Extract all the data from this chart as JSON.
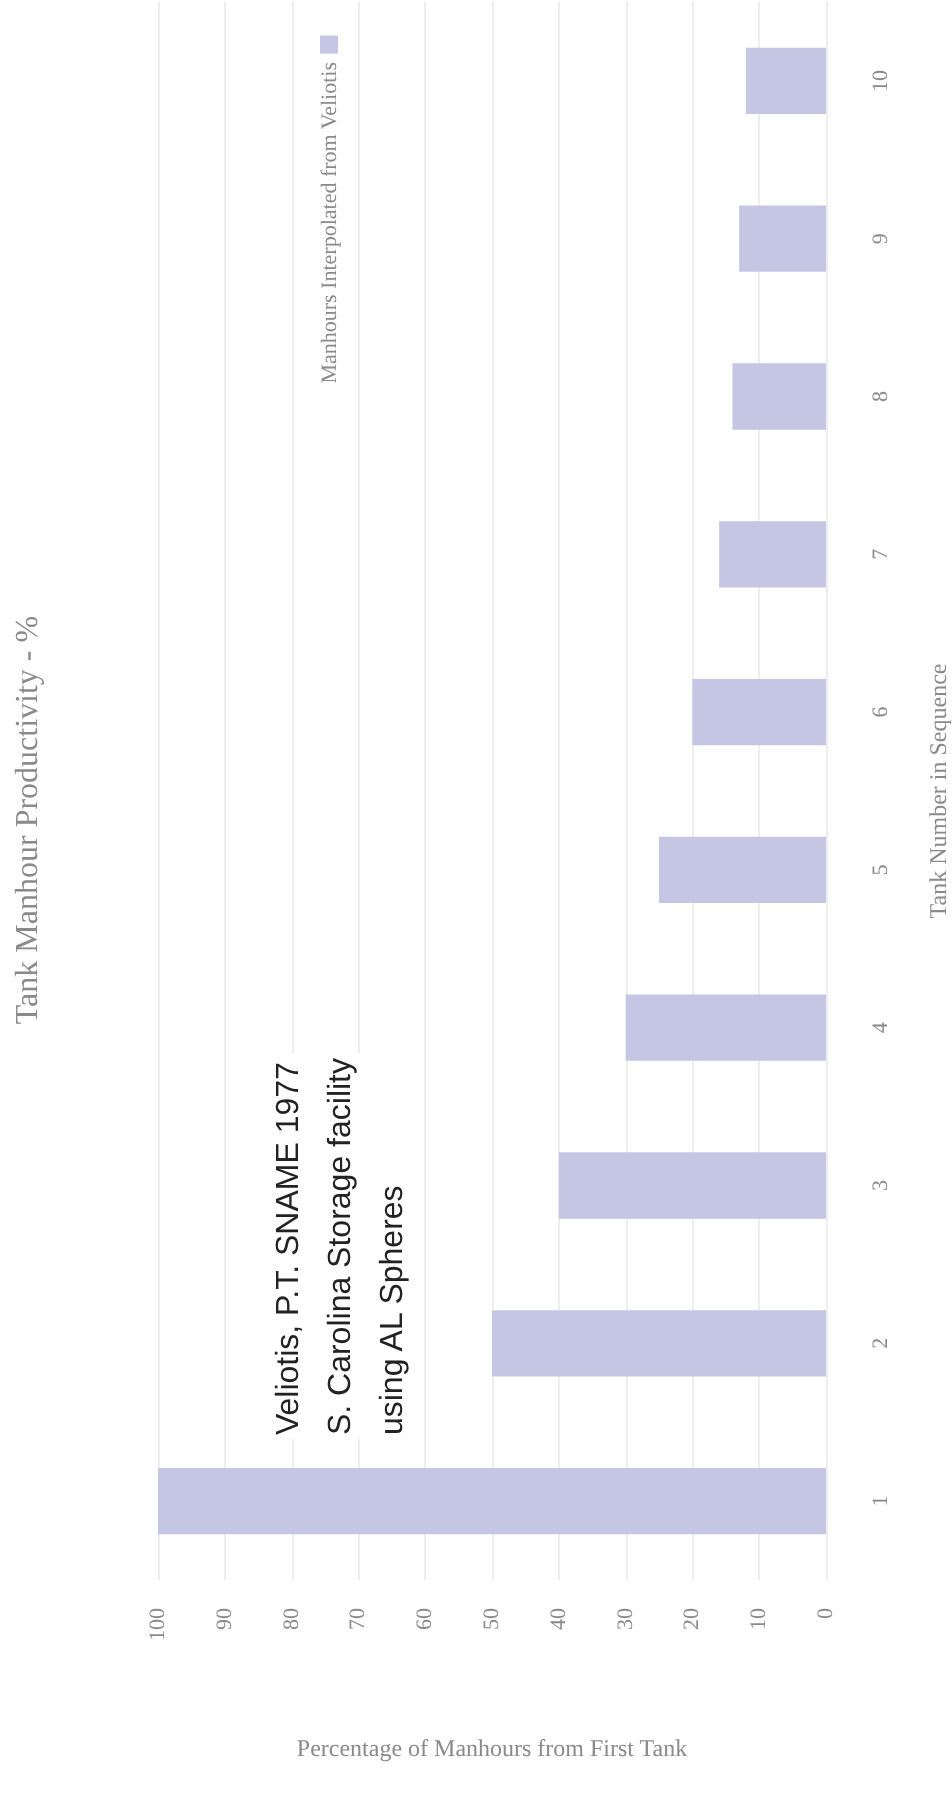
{
  "chart_data": {
    "type": "bar",
    "orientation": "horizontal",
    "title": "Tank Manhour Productivity - %",
    "xlabel": "Percentage of Manhours from First Tank",
    "ylabel": "Tank Number in Sequence",
    "categories": [
      "10",
      "9",
      "8",
      "7",
      "6",
      "5",
      "4",
      "3",
      "2",
      "1"
    ],
    "series": [
      {
        "name": "Manhours Interpolated from Veliotis",
        "color": "#c5c6e3",
        "values": [
          12,
          13,
          14,
          16,
          20,
          25,
          30,
          40,
          50,
          100
        ]
      }
    ],
    "xlim": [
      100,
      0
    ],
    "xticks": [
      0,
      10,
      20,
      30,
      40,
      50,
      60,
      70,
      80,
      90,
      100
    ],
    "grid": "x",
    "legend": "top left",
    "annotations": [
      "Veliotis, P.T. SNAME 1977\nS. Carolina Storage facility\nusing AL Spheres"
    ]
  }
}
